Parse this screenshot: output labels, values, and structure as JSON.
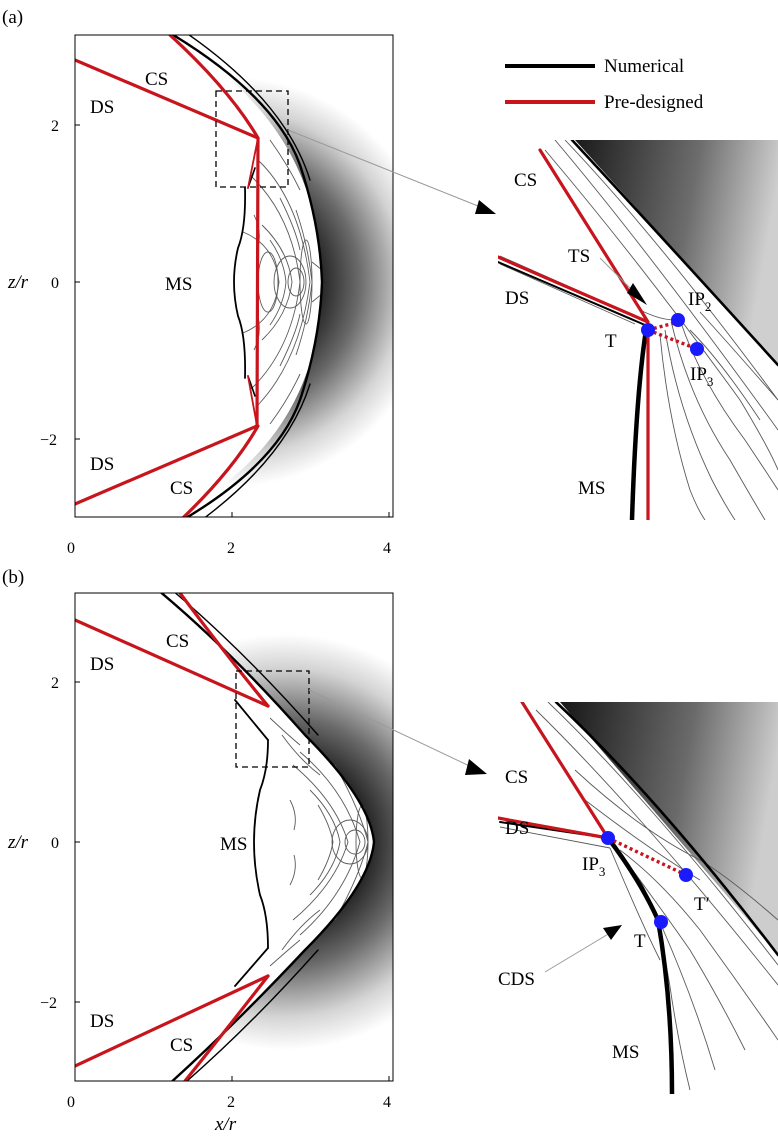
{
  "legend": {
    "items": [
      {
        "label": "Numerical",
        "color": "#000000"
      },
      {
        "label": "Pre-designed",
        "color": "#c8141c"
      }
    ]
  },
  "axes": {
    "xlabel": "x/r",
    "ylabel": "z/r",
    "xticks": [
      "0",
      "2",
      "4"
    ],
    "yticks": [
      "2",
      "0",
      "−2"
    ]
  },
  "panel_a": {
    "tag": "(a)",
    "labels": {
      "cs_top": "CS",
      "ds_top": "DS",
      "ms": "MS",
      "ds_bottom": "DS",
      "cs_bottom": "CS"
    },
    "inset_labels": {
      "cs": "CS",
      "ts": "TS",
      "ds": "DS",
      "ip2": "IP",
      "ip2_sub": "2",
      "t": "T",
      "ip3": "IP",
      "ip3_sub": "3",
      "ms": "MS"
    }
  },
  "panel_b": {
    "tag": "(b)",
    "labels": {
      "cs_top": "CS",
      "ds_top": "DS",
      "ms": "MS",
      "ds_bottom": "DS",
      "cs_bottom": "CS"
    },
    "inset_labels": {
      "cs": "CS",
      "ds": "DS",
      "ip3": "IP",
      "ip3_sub": "3",
      "tprime": "T′",
      "cds": "CDS",
      "t": "T",
      "ms": "MS"
    }
  },
  "colors": {
    "numerical": "#000000",
    "predesigned": "#c8141c",
    "points": "#1a1aff"
  }
}
